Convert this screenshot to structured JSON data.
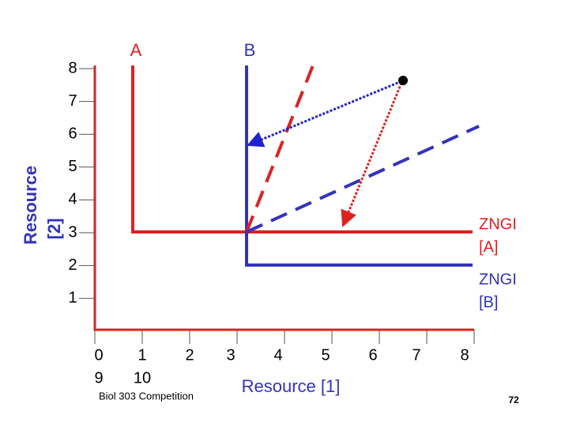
{
  "labels": {
    "a": "A",
    "b": "B",
    "zngi_a": [
      "ZNGI",
      "[A]"
    ],
    "zngi_b": [
      "ZNGI",
      "[B]"
    ]
  },
  "y_axis": {
    "title": [
      "Resource",
      "[2]"
    ],
    "ticks": [
      "8",
      "7",
      "6",
      "5",
      "4",
      "3",
      "2",
      "1"
    ]
  },
  "x_axis": {
    "title": "Resource [1]",
    "ticks": [
      "0",
      "1",
      "2",
      "3",
      "4",
      "5",
      "6",
      "7",
      "8"
    ],
    "ticks_second_row": [
      "9",
      "10"
    ]
  },
  "footer": {
    "course": "Biol 303 Competition",
    "page": "72"
  }
}
